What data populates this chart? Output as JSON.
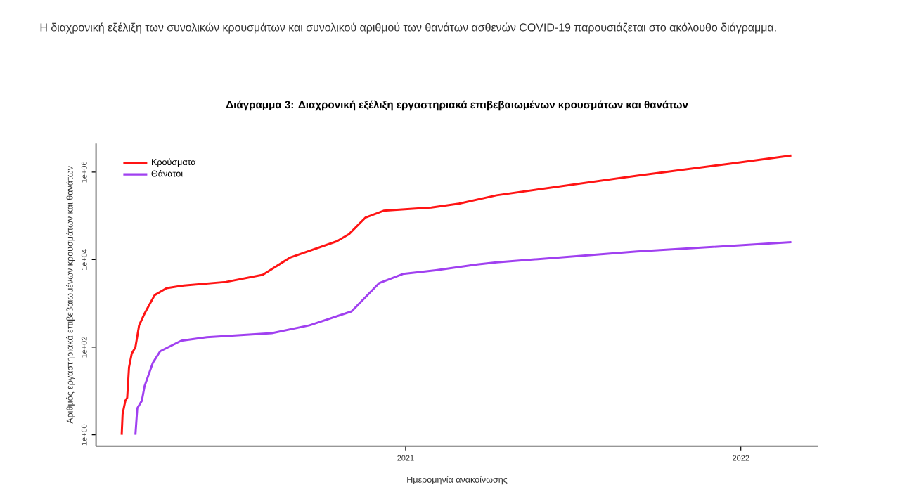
{
  "chart_data": {
    "type": "line",
    "title": "Διάγραμμα 3: Διαχρονική εξέλιξη εργαστηριακά επιβεβαιωμένων κρουσμάτων και θανάτων",
    "annotations": [
      "Η διαχρονική εξέλιξη των συνολικών κρουσμάτων και συνολικού αριθμού των θανάτων ασθενών COVID-19 παρουσιάζεται στο ακόλουθο διάγραμμα."
    ],
    "xlabel": "Ημερομηνία ανακοίνωσης",
    "ylabel": "Αριθμός εργαστηριακά επιβεβαιωμένων κρουσμάτων και θανάτων",
    "log": "y",
    "legend": "top left",
    "grid": false,
    "marker": "none",
    "line_style": "solid",
    "xlim": [
      "2020-01-29",
      "2022-03-26"
    ],
    "xticks": [
      {
        "value": "2021-01-01",
        "label": "2021"
      },
      {
        "value": "2022-01-01",
        "label": "2022"
      }
    ],
    "ylim": [
      0.55,
      4500000
    ],
    "yticks": [
      {
        "value": 1,
        "label": "1e+00"
      },
      {
        "value": 100,
        "label": "1e+02"
      },
      {
        "value": 10000,
        "label": "1e+04"
      },
      {
        "value": 1000000,
        "label": "1e+06"
      }
    ],
    "series": [
      {
        "name": "Κρούσματα",
        "color": "#ff1414",
        "x": [
          "2020-02-26",
          "2020-02-27",
          "2020-03-01",
          "2020-03-03",
          "2020-03-05",
          "2020-03-08",
          "2020-03-12",
          "2020-03-16",
          "2020-03-22",
          "2020-04-02",
          "2020-04-15",
          "2020-05-04",
          "2020-06-19",
          "2020-07-29",
          "2020-08-28",
          "2020-10-18",
          "2020-10-31",
          "2020-11-18",
          "2020-12-08",
          "2021-01-29",
          "2021-02-28",
          "2021-04-10",
          "2021-09-10",
          "2021-12-20",
          "2022-02-25"
        ],
        "values": [
          1,
          3,
          6,
          7,
          35,
          72,
          100,
          316,
          590,
          1550,
          2240,
          2570,
          3100,
          4500,
          11200,
          26300,
          38000,
          91000,
          131000,
          155000,
          190000,
          295000,
          830000,
          1550000,
          2400000
        ]
      },
      {
        "name": "Θάνατοι",
        "color": "#a040f0",
        "x": [
          "2020-03-12",
          "2020-03-14",
          "2020-03-19",
          "2020-03-22",
          "2020-03-31",
          "2020-04-08",
          "2020-05-01",
          "2020-05-29",
          "2020-08-08",
          "2020-09-18",
          "2020-11-03",
          "2020-12-03",
          "2020-12-29",
          "2021-02-03",
          "2021-03-20",
          "2021-04-10",
          "2021-09-10",
          "2022-02-25"
        ],
        "values": [
          1,
          4,
          6,
          13,
          44,
          81,
          141,
          170,
          209,
          316,
          660,
          2900,
          4700,
          5750,
          7760,
          8700,
          15400,
          25100
        ]
      }
    ]
  }
}
